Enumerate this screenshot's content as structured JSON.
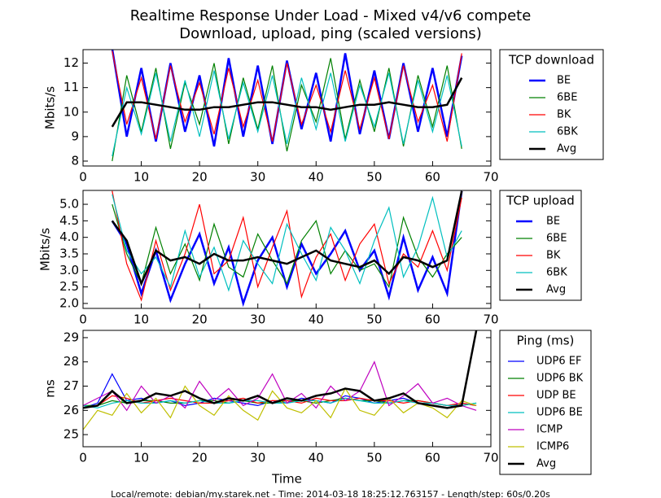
{
  "footer": "Local/remote: debian/my.starek.net - Time: 2014-03-18 18:25:12.763157 - Length/step: 60s/0.20s",
  "chart_data": [
    {
      "type": "line",
      "title": "Realtime Response Under Load - Mixed v4/v6 compete",
      "subtitle": "Download, upload, ping (scaled versions)",
      "ylabel": "Mbits/s",
      "legend_title": "TCP download",
      "legend": "right",
      "xlim": [
        0,
        70
      ],
      "xticks": [
        0,
        10,
        20,
        30,
        40,
        50,
        60,
        70
      ],
      "ylim": [
        7.8,
        12.55
      ],
      "yticks": [
        8,
        9,
        10,
        11,
        12
      ],
      "x": [
        5,
        7.5,
        10,
        12.5,
        15,
        17.5,
        20,
        22.5,
        25,
        27.5,
        30,
        32.5,
        35,
        37.5,
        40,
        42.5,
        45,
        47.5,
        50,
        52.5,
        55,
        57.5,
        60,
        62.5,
        65
      ],
      "series": [
        {
          "name": "BE",
          "color": "#0000ff",
          "linewidth": 2.5,
          "values": [
            12.6,
            9,
            11.8,
            8.8,
            12,
            9.2,
            11.5,
            8.6,
            12.2,
            9,
            11.9,
            8.7,
            12.1,
            9.3,
            11.6,
            8.8,
            12.4,
            9.1,
            11.7,
            8.9,
            12,
            9.2,
            11.8,
            9,
            12.3
          ]
        },
        {
          "name": "6BE",
          "color": "#008000",
          "linewidth": 1.2,
          "values": [
            8,
            11.5,
            9.2,
            11.8,
            8.5,
            11.2,
            9.5,
            12,
            8.7,
            11.4,
            9.3,
            11.9,
            8.4,
            11.1,
            9.6,
            12.2,
            8.9,
            11.3,
            9.2,
            11.8,
            8.6,
            11.5,
            9.4,
            11.9,
            8.5
          ]
        },
        {
          "name": "BK",
          "color": "#ff0000",
          "linewidth": 1.2,
          "values": [
            12.5,
            9.5,
            11.4,
            8.9,
            11.9,
            9.6,
            11.2,
            9.1,
            11.8,
            9.4,
            11.3,
            8.8,
            12,
            9.5,
            11.1,
            9.2,
            11.7,
            9.3,
            11.4,
            8.9,
            11.9,
            9.6,
            11.1,
            8.8,
            12.4
          ]
        },
        {
          "name": "6BK",
          "color": "#00bfbf",
          "linewidth": 1.2,
          "values": [
            8.2,
            11,
            9.1,
            11.6,
            8.8,
            11.3,
            9,
            11.7,
            8.9,
            11.2,
            9.2,
            11.5,
            8.7,
            11.4,
            9.3,
            11.6,
            8.8,
            11.1,
            9.4,
            11.6,
            8.7,
            11.3,
            9.2,
            11.5,
            8.6
          ]
        },
        {
          "name": "Avg",
          "color": "#000000",
          "linewidth": 2.5,
          "values": [
            9.4,
            10.4,
            10.4,
            10.3,
            10.2,
            10.1,
            10.1,
            10.2,
            10.2,
            10.3,
            10.4,
            10.4,
            10.3,
            10.2,
            10.2,
            10.1,
            10.2,
            10.3,
            10.3,
            10.4,
            10.3,
            10.2,
            10.2,
            10.3,
            11.4
          ]
        }
      ]
    },
    {
      "type": "line",
      "ylabel": "Mbits/s",
      "legend_title": "TCP upload",
      "legend": "right",
      "xlim": [
        0,
        70
      ],
      "xticks": [
        0,
        10,
        20,
        30,
        40,
        50,
        60,
        70
      ],
      "ylim": [
        1.85,
        5.42
      ],
      "yticks": [
        {
          "value": 2,
          "label": "2.0"
        },
        2.5,
        {
          "value": 3,
          "label": "3.0"
        },
        3.5,
        {
          "value": 4,
          "label": "4.0"
        },
        4.5,
        {
          "value": 5,
          "label": "5.0"
        }
      ],
      "x": [
        5,
        7.5,
        10,
        12.5,
        15,
        17.5,
        20,
        22.5,
        25,
        27.5,
        30,
        32.5,
        35,
        37.5,
        40,
        42.5,
        45,
        47.5,
        50,
        52.5,
        55,
        57.5,
        60,
        62.5,
        65
      ],
      "series": [
        {
          "name": "BE",
          "color": "#0000ff",
          "linewidth": 2.5,
          "values": [
            4.5,
            3.8,
            2.3,
            3.6,
            2.1,
            3.2,
            4.1,
            2.6,
            3.7,
            2,
            3.3,
            4,
            2.5,
            3.8,
            2.9,
            3.5,
            4.2,
            3,
            3.6,
            2.2,
            4,
            2.4,
            3.4,
            2.3,
            5.4
          ]
        },
        {
          "name": "6BE",
          "color": "#008000",
          "linewidth": 1.2,
          "values": [
            5,
            3.5,
            2.6,
            4.3,
            2.9,
            3.8,
            2.7,
            4.4,
            3.1,
            2.8,
            4.1,
            3.3,
            2.6,
            3.9,
            4.5,
            2.9,
            3.6,
            3,
            3.2,
            2.5,
            4.6,
            3.4,
            2.8,
            3.5,
            4
          ]
        },
        {
          "name": "BK",
          "color": "#ff0000",
          "linewidth": 1.2,
          "values": [
            5.4,
            3.2,
            2.1,
            3.9,
            2.4,
            3.5,
            5,
            2.9,
            3.3,
            4.6,
            2.5,
            3.7,
            4.8,
            2.2,
            3.4,
            4.1,
            2.7,
            3.8,
            4.4,
            2.6,
            3.5,
            3.1,
            4.2,
            3,
            5.2
          ]
        },
        {
          "name": "6BK",
          "color": "#00bfbf",
          "linewidth": 1.2,
          "values": [
            5.3,
            3.6,
            2.9,
            3.4,
            2.5,
            4.2,
            2.8,
            3.7,
            2.4,
            3.9,
            3.2,
            2.6,
            4.4,
            3.5,
            2.7,
            4.3,
            3.6,
            2.6,
            3.9,
            4.9,
            2.8,
            3.7,
            5.2,
            3.4,
            4.2
          ]
        },
        {
          "name": "Avg",
          "color": "#000000",
          "linewidth": 2.5,
          "values": [
            4.5,
            3.9,
            2.6,
            3.6,
            3.3,
            3.4,
            3.2,
            3.5,
            3.3,
            3.3,
            3.4,
            3.3,
            3.2,
            3.4,
            3.6,
            3.3,
            3.2,
            3.1,
            3.3,
            2.9,
            3.4,
            3.3,
            3.1,
            3.3,
            5.4
          ]
        }
      ]
    },
    {
      "type": "line",
      "ylabel": "ms",
      "xlabel": "Time",
      "legend_title": "Ping (ms)",
      "legend": "right",
      "xlim": [
        0,
        70
      ],
      "xticks": [
        0,
        10,
        20,
        30,
        40,
        50,
        60,
        70
      ],
      "ylim": [
        24.5,
        29.3
      ],
      "yticks": [
        25,
        26,
        27,
        28,
        29
      ],
      "x": [
        0,
        2.5,
        5,
        7.5,
        10,
        12.5,
        15,
        17.5,
        20,
        22.5,
        25,
        27.5,
        30,
        32.5,
        35,
        37.5,
        40,
        42.5,
        45,
        47.5,
        50,
        52.5,
        55,
        57.5,
        60,
        62.5,
        65,
        67.5
      ],
      "series": [
        {
          "name": "UDP6 EF",
          "color": "#0000ff",
          "linewidth": 1.2,
          "values": [
            26.1,
            26.3,
            27.5,
            26.4,
            26.5,
            26.3,
            26.4,
            26.2,
            26.3,
            26.5,
            26.4,
            26.3,
            26.2,
            26.4,
            26.3,
            26.5,
            26.4,
            26.3,
            26.6,
            26.5,
            26.3,
            26.4,
            26.5,
            26.3,
            26.2,
            26.1,
            26.3,
            26.2
          ]
        },
        {
          "name": "UDP6 BK",
          "color": "#008000",
          "linewidth": 1.2,
          "values": [
            26.2,
            26.2,
            26.4,
            26.3,
            26.4,
            26.4,
            26.3,
            26.3,
            26.4,
            26.4,
            26.3,
            26.4,
            26.3,
            26.3,
            26.4,
            26.4,
            26.3,
            26.4,
            26.5,
            26.4,
            26.4,
            26.3,
            26.4,
            26.4,
            26.3,
            26.2,
            26.2,
            26.3
          ]
        },
        {
          "name": "UDP BE",
          "color": "#ff0000",
          "linewidth": 1.2,
          "values": [
            26.1,
            26.2,
            26.6,
            26.5,
            26.3,
            26.4,
            26.5,
            26.4,
            26.3,
            26.3,
            26.4,
            26.5,
            26.3,
            26.4,
            26.4,
            26.3,
            26.5,
            26.4,
            26.4,
            26.5,
            26.4,
            26.4,
            26.3,
            26.4,
            26.3,
            26.2,
            26.3,
            26.2
          ]
        },
        {
          "name": "UDP6 BE",
          "color": "#00bfbf",
          "linewidth": 1.2,
          "values": [
            26.2,
            26.1,
            26.3,
            26.4,
            26.3,
            26.3,
            26.4,
            26.3,
            26.4,
            26.3,
            26.3,
            26.4,
            26.4,
            26.3,
            26.3,
            26.4,
            26.4,
            26.3,
            26.5,
            26.4,
            26.3,
            26.3,
            26.4,
            26.3,
            26.3,
            26.2,
            26.2,
            26.3
          ]
        },
        {
          "name": "ICMP",
          "color": "#bf00bf",
          "linewidth": 1.2,
          "values": [
            26.2,
            26.5,
            26.8,
            26,
            27,
            26.3,
            26.6,
            26.1,
            27.2,
            26.4,
            26.9,
            26.2,
            26.5,
            27.5,
            26.3,
            26.7,
            26.1,
            27,
            26.4,
            26.8,
            28,
            26.2,
            26.6,
            27.1,
            26.3,
            26.5,
            26.2,
            26
          ]
        },
        {
          "name": "ICMP6",
          "color": "#bfbf00",
          "linewidth": 1.2,
          "values": [
            25.2,
            26,
            25.8,
            26.7,
            25.9,
            26.5,
            25.7,
            27,
            26.2,
            25.8,
            26.6,
            26,
            25.6,
            26.8,
            26.1,
            25.9,
            26.4,
            25.7,
            26.9,
            26,
            25.8,
            26.5,
            25.9,
            26.3,
            26.1,
            25.7,
            26.4,
            26.2
          ]
        },
        {
          "name": "Avg",
          "color": "#000000",
          "linewidth": 2.5,
          "values": [
            26.1,
            26.2,
            26.8,
            26.3,
            26.4,
            26.7,
            26.6,
            26.8,
            26.5,
            26.3,
            26.5,
            26.4,
            26.6,
            26.3,
            26.5,
            26.4,
            26.6,
            26.7,
            26.9,
            26.8,
            26.4,
            26.5,
            26.7,
            26.3,
            26.2,
            26.1,
            26.2,
            29.3
          ]
        }
      ]
    }
  ]
}
